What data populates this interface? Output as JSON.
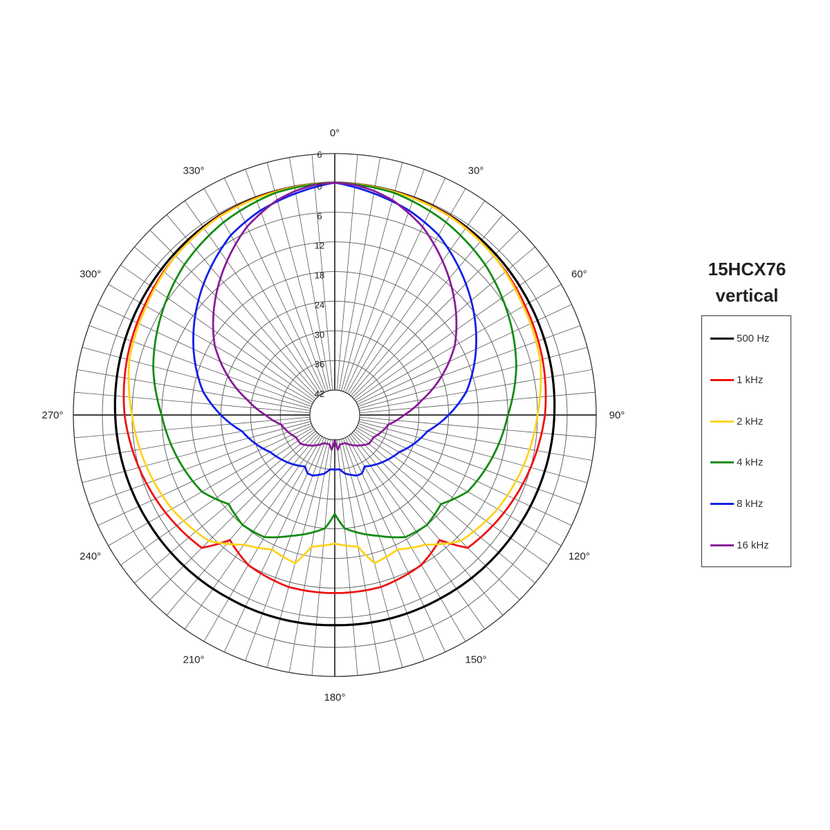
{
  "title": [
    "15HCX76",
    "vertical"
  ],
  "legend": [
    {
      "label": "500 Hz",
      "color": "#000000"
    },
    {
      "label": "1 kHz",
      "color": "#ee1111"
    },
    {
      "label": "2 kHz",
      "color": "#ffd21e"
    },
    {
      "label": "4 kHz",
      "color": "#128c12"
    },
    {
      "label": "8 kHz",
      "color": "#1020e8"
    },
    {
      "label": "16 kHz",
      "color": "#8a1a9a"
    }
  ],
  "chart_data": {
    "type": "polar",
    "title": "15HCX76 vertical",
    "angle_ticks": [
      "0°",
      "30°",
      "60°",
      "90°",
      "120°",
      "150°",
      "180°",
      "210°",
      "240°",
      "270°",
      "300°",
      "330°"
    ],
    "radial_ticks": [
      "6",
      "0",
      "6",
      "12",
      "18",
      "24",
      "30",
      "36",
      "42"
    ],
    "radial_range_db": [
      -42,
      6
    ],
    "angle_grid_step_deg": 5,
    "series": [
      {
        "name": "500 Hz",
        "color": "#000000",
        "angles": [
          0,
          30,
          60,
          90,
          120,
          150,
          180,
          210,
          240,
          270,
          300,
          330,
          360
        ],
        "values": [
          0,
          -0.4,
          -1.6,
          -2.6,
          -3.5,
          -4.2,
          -4.5,
          -4.2,
          -3.5,
          -2.6,
          -1.6,
          -0.4,
          0
        ]
      },
      {
        "name": "1 kHz",
        "color": "#ee1111",
        "angles": [
          0,
          30,
          45,
          60,
          75,
          90,
          105,
          120,
          135,
          140,
          150,
          165,
          180,
          195,
          210,
          220,
          225,
          240,
          255,
          270,
          285,
          300,
          315,
          330,
          360
        ],
        "values": [
          0,
          -0.5,
          -1.5,
          -2.6,
          -3.5,
          -4.5,
          -6,
          -7.5,
          -9,
          -14,
          -12,
          -11,
          -11,
          -11,
          -12,
          -14,
          -9,
          -7.5,
          -6,
          -4.5,
          -3.5,
          -2.6,
          -1.5,
          -0.5,
          0
        ]
      },
      {
        "name": "2 kHz",
        "color": "#ffd21e",
        "angles": [
          0,
          30,
          45,
          60,
          75,
          90,
          105,
          120,
          135,
          145,
          155,
          165,
          170,
          180,
          190,
          195,
          205,
          215,
          225,
          240,
          255,
          270,
          285,
          300,
          315,
          330,
          360
        ],
        "values": [
          0,
          -0.6,
          -1.5,
          -3,
          -4,
          -6,
          -7.5,
          -9,
          -11,
          -15,
          -17,
          -16,
          -20,
          -21,
          -20,
          -16,
          -17,
          -15,
          -11,
          -9,
          -7.5,
          -6,
          -4,
          -3,
          -1.5,
          -0.6,
          0
        ]
      },
      {
        "name": "4 kHz",
        "color": "#128c12",
        "angles": [
          0,
          15,
          30,
          45,
          60,
          75,
          90,
          105,
          120,
          130,
          140,
          150,
          160,
          170,
          175,
          180,
          185,
          190,
          200,
          210,
          220,
          230,
          240,
          255,
          270,
          285,
          300,
          315,
          330,
          345,
          360
        ],
        "values": [
          0,
          -0.5,
          -2,
          -4,
          -6.5,
          -9,
          -12,
          -14,
          -16,
          -19,
          -18,
          -18.5,
          -21,
          -23,
          -24,
          -27,
          -24,
          -23,
          -21,
          -18.5,
          -18,
          -19,
          -16,
          -14,
          -12,
          -9,
          -6.5,
          -4,
          -2,
          -0.5,
          0
        ]
      },
      {
        "name": "8 kHz",
        "color": "#1020e8",
        "angles": [
          0,
          10,
          20,
          30,
          40,
          50,
          60,
          70,
          80,
          90,
          100,
          110,
          120,
          130,
          140,
          150,
          155,
          160,
          170,
          175,
          180,
          185,
          190,
          200,
          205,
          210,
          220,
          230,
          240,
          250,
          260,
          270,
          280,
          290,
          300,
          310,
          320,
          330,
          340,
          350,
          360
        ],
        "values": [
          0,
          -1.5,
          -3,
          -5,
          -8,
          -11,
          -14,
          -17,
          -20,
          -24,
          -28,
          -30,
          -32,
          -33,
          -34,
          -35,
          -34,
          -34,
          -35,
          -36,
          -36,
          -36,
          -35,
          -34,
          -34,
          -35,
          -34,
          -33,
          -32,
          -30,
          -28,
          -24,
          -20,
          -17,
          -14,
          -11,
          -8,
          -5,
          -3,
          -1.5,
          0
        ]
      },
      {
        "name": "16 kHz",
        "color": "#8a1a9a",
        "angles": [
          0,
          5,
          10,
          15,
          20,
          25,
          30,
          40,
          50,
          60,
          70,
          80,
          90,
          100,
          110,
          120,
          130,
          140,
          150,
          160,
          170,
          175,
          180,
          185,
          190,
          200,
          210,
          220,
          230,
          240,
          250,
          260,
          270,
          280,
          290,
          300,
          310,
          320,
          330,
          335,
          340,
          345,
          350,
          355,
          360
        ],
        "values": [
          0,
          -0.3,
          -1,
          -2,
          -3.5,
          -5,
          -7,
          -11,
          -15,
          -19,
          -24,
          -29,
          -33,
          -36,
          -37,
          -38,
          -38,
          -39,
          -40,
          -41,
          -41,
          -40,
          -42,
          -40,
          -41,
          -41,
          -40,
          -39,
          -38,
          -38,
          -37,
          -36,
          -33,
          -29,
          -24,
          -19,
          -15,
          -11,
          -7,
          -5,
          -3.5,
          -2,
          -1,
          -0.3,
          0
        ]
      }
    ]
  }
}
